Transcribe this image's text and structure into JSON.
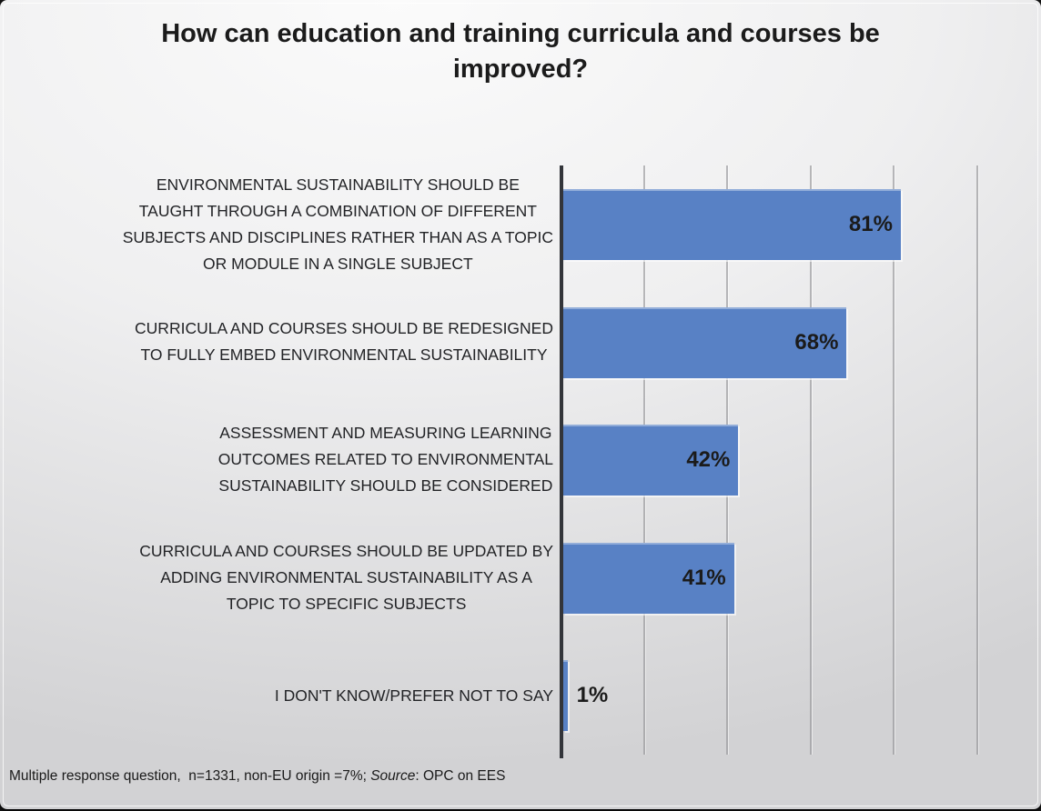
{
  "page": {
    "title": "How can education and training curricula and courses be improved?"
  },
  "footnote": {
    "segments": [
      {
        "text": "Multiple response question,  n=1331, non-EU origin =7%; ",
        "italic": false
      },
      {
        "text": "Source",
        "italic": true
      },
      {
        "text": ": OPC on EES",
        "italic": false
      }
    ]
  },
  "chart_data": {
    "type": "bar",
    "orientation": "horizontal",
    "title": "How can education and training curricula and courses be improved?",
    "categories": [
      "ENVIRONMENTAL SUSTAINABILITY SHOULD BE TAUGHT THROUGH A COMBINATION OF DIFFERENT SUBJECTS AND DISCIPLINES RATHER THAN AS A TOPIC OR MODULE IN A SINGLE SUBJECT",
      "CURRICULA AND COURSES SHOULD BE REDESIGNED TO FULLY EMBED ENVIRONMENTAL SUSTAINABILITY",
      "ASSESSMENT AND MEASURING LEARNING OUTCOMES RELATED TO ENVIRONMENTAL SUSTAINABILITY SHOULD BE CONSIDERED",
      "CURRICULA AND COURSES SHOULD BE UPDATED BY ADDING ENVIRONMENTAL SUSTAINABILITY AS A TOPIC TO SPECIFIC SUBJECTS",
      "I DON'T KNOW/PREFER NOT TO SAY"
    ],
    "category_display_lines": [
      [
        "ENVIRONMENTAL SUSTAINABILITY SHOULD BE",
        "TAUGHT THROUGH A COMBINATION OF DIFFERENT",
        "SUBJECTS AND DISCIPLINES RATHER THAN AS A TOPIC",
        "OR MODULE IN A SINGLE SUBJECT"
      ],
      [
        "CURRICULA AND COURSES SHOULD BE REDESIGNED",
        "TO FULLY EMBED ENVIRONMENTAL SUSTAINABILITY"
      ],
      [
        "ASSESSMENT AND MEASURING LEARNING",
        "OUTCOMES RELATED TO ENVIRONMENTAL",
        "SUSTAINABILITY SHOULD BE CONSIDERED"
      ],
      [
        "CURRICULA AND COURSES SHOULD BE UPDATED BY",
        "ADDING ENVIRONMENTAL SUSTAINABILITY AS A",
        "TOPIC TO SPECIFIC SUBJECTS"
      ],
      [
        "I DON'T KNOW/PREFER NOT TO SAY"
      ]
    ],
    "values": [
      81,
      68,
      42,
      41,
      1
    ],
    "value_labels": [
      "81%",
      "68%",
      "42%",
      "41%",
      "1%"
    ],
    "xlim": [
      0,
      100
    ],
    "gridlines_percent": [
      20,
      40,
      60,
      80,
      100
    ],
    "grid": true,
    "value_axis_tick_labels_visible": false,
    "legend": "none",
    "colors": {
      "bar": "#5881C5",
      "axis_line": "#33353A",
      "gridline": "#96969A",
      "title_text": "#1B1B1B",
      "category_text": "#222326",
      "value_label_text": "#1B1B1B",
      "background_top": "#FBFBFB",
      "background_bottom": "#D2D2D4"
    }
  }
}
